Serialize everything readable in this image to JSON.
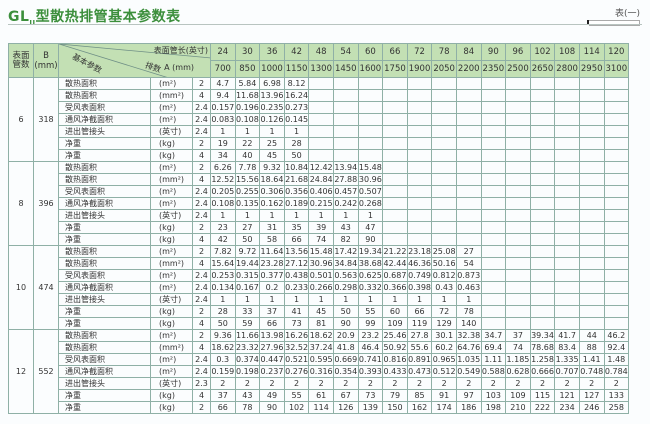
{
  "title": {
    "prefix": "GL",
    "sub": "II",
    "main": "型散热排管基本参数表"
  },
  "table_no": "表(一)",
  "header": {
    "col_tubes": "表面管数",
    "col_b": "B (mm)",
    "diag_param": "基本参数",
    "diag_rows": "排数",
    "diag_len": "表面管长(英寸)",
    "diag_a": "A (mm)",
    "lengths_in": [
      "24",
      "30",
      "36",
      "42",
      "48",
      "54",
      "60",
      "66",
      "72",
      "78",
      "84",
      "90",
      "96",
      "102",
      "108",
      "114",
      "120"
    ],
    "lengths_mm": [
      "700",
      "850",
      "1000",
      "1150",
      "1300",
      "1450",
      "1600",
      "1750",
      "1900",
      "2050",
      "2200",
      "2350",
      "2500",
      "2650",
      "2800",
      "2950",
      "3100"
    ]
  },
  "groups": [
    {
      "tubes": "6",
      "b": "318",
      "rows": [
        {
          "name": "散热面积",
          "unit": "(m²)",
          "n": "2",
          "v": [
            "4.7",
            "5.84",
            "6.98",
            "8.12"
          ]
        },
        {
          "name": "散热面积",
          "unit": "(mm²)",
          "n": "4",
          "v": [
            "9.4",
            "11.68",
            "13.96",
            "16.24"
          ]
        },
        {
          "name": "受风表面积",
          "unit": "(m²)",
          "n": "2.4",
          "v": [
            "0.157",
            "0.196",
            "0.235",
            "0.273"
          ]
        },
        {
          "name": "通风净截面积",
          "unit": "(m²)",
          "n": "2.4",
          "v": [
            "0.083",
            "0.108",
            "0.126",
            "0.145"
          ]
        },
        {
          "name": "进出管接头",
          "unit": "(英寸)",
          "n": "2.4",
          "v": [
            "1",
            "1",
            "1",
            "1"
          ]
        },
        {
          "name": "净重",
          "unit": "(kg)",
          "n": "2",
          "v": [
            "19",
            "22",
            "25",
            "28"
          ]
        },
        {
          "name": "净重",
          "unit": "(kg)",
          "n": "4",
          "v": [
            "34",
            "40",
            "45",
            "50"
          ]
        }
      ]
    },
    {
      "tubes": "8",
      "b": "396",
      "rows": [
        {
          "name": "散热面积",
          "unit": "(m²)",
          "n": "2",
          "v": [
            "6.26",
            "7.78",
            "9.32",
            "10.84",
            "12.42",
            "13.94",
            "15.48"
          ]
        },
        {
          "name": "散热面积",
          "unit": "(mm²)",
          "n": "4",
          "v": [
            "12.52",
            "15.56",
            "18.64",
            "21.68",
            "24.84",
            "27.88",
            "30.96"
          ]
        },
        {
          "name": "受风表面积",
          "unit": "(m²)",
          "n": "2.4",
          "v": [
            "0.205",
            "0.255",
            "0.306",
            "0.356",
            "0.406",
            "0.457",
            "0.507"
          ]
        },
        {
          "name": "通风净截面积",
          "unit": "(m²)",
          "n": "2.4",
          "v": [
            "0.108",
            "0.135",
            "0.162",
            "0.189",
            "0.215",
            "0.242",
            "0.268"
          ]
        },
        {
          "name": "进出管接头",
          "unit": "(英寸)",
          "n": "2.4",
          "v": [
            "1",
            "1",
            "1",
            "1",
            "1",
            "1",
            "1"
          ]
        },
        {
          "name": "净重",
          "unit": "(kg)",
          "n": "2",
          "v": [
            "23",
            "27",
            "31",
            "35",
            "39",
            "43",
            "47"
          ]
        },
        {
          "name": "净重",
          "unit": "(kg)",
          "n": "4",
          "v": [
            "42",
            "50",
            "58",
            "66",
            "74",
            "82",
            "90"
          ]
        }
      ]
    },
    {
      "tubes": "10",
      "b": "474",
      "rows": [
        {
          "name": "散热面积",
          "unit": "(m²)",
          "n": "2",
          "v": [
            "7.82",
            "9.72",
            "11.64",
            "13.56",
            "15.48",
            "17.42",
            "19.34",
            "21.22",
            "23.18",
            "25.08",
            "27"
          ]
        },
        {
          "name": "散热面积",
          "unit": "(mm²)",
          "n": "4",
          "v": [
            "15.64",
            "19.44",
            "23.28",
            "27.12",
            "30.96",
            "34.84",
            "38.68",
            "42.44",
            "46.36",
            "50.16",
            "54"
          ]
        },
        {
          "name": "受风表面积",
          "unit": "(m²)",
          "n": "2.4",
          "v": [
            "0.253",
            "0.315",
            "0.377",
            "0.438",
            "0.501",
            "0.563",
            "0.625",
            "0.687",
            "0.749",
            "0.812",
            "0.873"
          ]
        },
        {
          "name": "通风净截面积",
          "unit": "(m²)",
          "n": "2.4",
          "v": [
            "0.134",
            "0.167",
            "0.2",
            "0.233",
            "0.266",
            "0.298",
            "0.332",
            "0.366",
            "0.398",
            "0.43",
            "0.463"
          ]
        },
        {
          "name": "进出管接头",
          "unit": "(英寸)",
          "n": "2.4",
          "v": [
            "1",
            "1",
            "1",
            "1",
            "1",
            "1",
            "1",
            "1",
            "1",
            "1",
            "1"
          ]
        },
        {
          "name": "净重",
          "unit": "(kg)",
          "n": "2",
          "v": [
            "28",
            "33",
            "37",
            "41",
            "45",
            "50",
            "55",
            "60",
            "66",
            "72",
            "78"
          ]
        },
        {
          "name": "净重",
          "unit": "(kg)",
          "n": "4",
          "v": [
            "50",
            "59",
            "66",
            "73",
            "81",
            "90",
            "99",
            "109",
            "119",
            "129",
            "140"
          ]
        }
      ]
    },
    {
      "tubes": "12",
      "b": "552",
      "rows": [
        {
          "name": "散热面积",
          "unit": "(m²)",
          "n": "2",
          "v": [
            "9.36",
            "11.66",
            "13.98",
            "16.26",
            "18.62",
            "20.9",
            "23.2",
            "25.46",
            "27.8",
            "30.1",
            "32.38",
            "34.7",
            "37",
            "39.34",
            "41.7",
            "44",
            "46.2"
          ]
        },
        {
          "name": "散热面积",
          "unit": "(mm²)",
          "n": "4",
          "v": [
            "18.62",
            "23.32",
            "27.96",
            "32.52",
            "37.24",
            "41.8",
            "46.4",
            "50.92",
            "55.6",
            "60.2",
            "64.76",
            "69.4",
            "74",
            "78.68",
            "83.4",
            "88",
            "92.4"
          ]
        },
        {
          "name": "受风表面积",
          "unit": "(m²)",
          "n": "2.4",
          "v": [
            "0.3",
            "0.374",
            "0.447",
            "0.521",
            "0.595",
            "0.669",
            "0.741",
            "0.816",
            "0.891",
            "0.965",
            "1.035",
            "1.11",
            "1.185",
            "1.258",
            "1.335",
            "1.41",
            "1.48"
          ]
        },
        {
          "name": "通风净截面积",
          "unit": "(m²)",
          "n": "2.4",
          "v": [
            "0.159",
            "0.198",
            "0.237",
            "0.276",
            "0.316",
            "0.354",
            "0.393",
            "0.433",
            "0.473",
            "0.512",
            "0.549",
            "0.588",
            "0.628",
            "0.666",
            "0.707",
            "0.748",
            "0.784"
          ]
        },
        {
          "name": "进出管接头",
          "unit": "(英寸)",
          "n": "2.3",
          "v": [
            "2",
            "2",
            "2",
            "2",
            "2",
            "2",
            "2",
            "2",
            "2",
            "2",
            "2",
            "2",
            "2",
            "2",
            "2",
            "2",
            "2"
          ]
        },
        {
          "name": "净重",
          "unit": "(kg)",
          "n": "4",
          "v": [
            "37",
            "43",
            "49",
            "55",
            "61",
            "67",
            "73",
            "79",
            "85",
            "91",
            "97",
            "103",
            "109",
            "115",
            "121",
            "127",
            "133"
          ]
        },
        {
          "name": "净重",
          "unit": "(kg)",
          "n": "2",
          "v": [
            "66",
            "78",
            "90",
            "102",
            "114",
            "126",
            "139",
            "150",
            "162",
            "174",
            "186",
            "198",
            "210",
            "222",
            "234",
            "246",
            "258"
          ]
        }
      ]
    }
  ],
  "colors": {
    "header_bg": "#c3e0b4",
    "grid": "#8fb0a6",
    "title": "#3c8f3c"
  }
}
